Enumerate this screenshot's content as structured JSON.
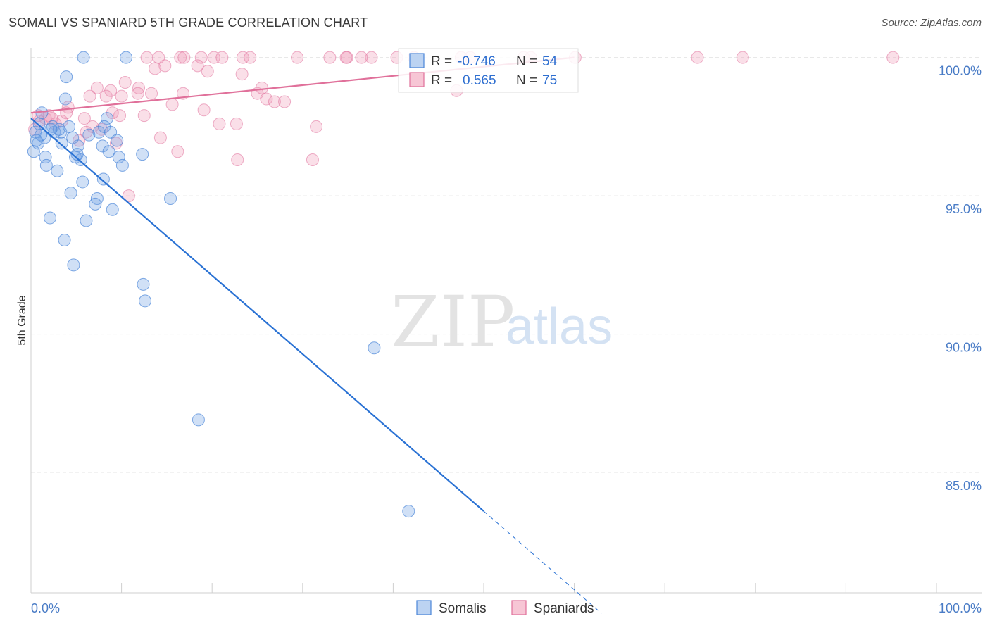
{
  "title": "SOMALI VS SPANIARD 5TH GRADE CORRELATION CHART",
  "source": "Source: ZipAtlas.com",
  "watermark": {
    "zip": "ZIP",
    "atlas": "atlas"
  },
  "colors": {
    "somali": "#4a86d8",
    "somali_fill": "rgba(120,165,230,0.35)",
    "spaniard": "#e0709a",
    "spaniard_fill": "rgba(240,150,180,0.3)",
    "tick_text": "#4a7cc6",
    "grid": "#e5e5e5"
  },
  "legend": {
    "rows": [
      {
        "r_label": "R = ",
        "r_value": "-0.746",
        "n_label": "N = ",
        "n_value": "54"
      },
      {
        "r_label": "R = ",
        "r_value": "0.565",
        "n_label": "N = ",
        "n_value": "75"
      }
    ]
  },
  "chart_data": {
    "type": "scatter",
    "title": "SOMALI VS SPANIARD 5TH GRADE CORRELATION CHART",
    "xlabel": "",
    "ylabel": "5th Grade",
    "xlim": [
      0,
      100
    ],
    "ylim": [
      80.65,
      100.55
    ],
    "x_tick_labels": [
      "0.0%",
      "100.0%"
    ],
    "y_ticks": [
      85,
      90,
      95,
      100
    ],
    "y_tick_labels": [
      "85.0%",
      "90.0%",
      "95.0%",
      "100.0%"
    ],
    "grid": true,
    "legend_position": "top-center",
    "series": [
      {
        "name": "Somalis",
        "r": -0.746,
        "n": 54,
        "trend": {
          "x0": 0,
          "y0": 97.8,
          "x1": 50,
          "y1": 83.6,
          "dashed_to_x": 63
        },
        "points": [
          [
            5.8,
            100.0
          ],
          [
            10.5,
            100.0
          ],
          [
            3.9,
            99.3
          ],
          [
            3.8,
            98.5
          ],
          [
            1.2,
            98.0
          ],
          [
            8.4,
            97.8
          ],
          [
            0.5,
            97.3
          ],
          [
            1.5,
            97.1
          ],
          [
            2.4,
            97.5
          ],
          [
            3.3,
            97.3
          ],
          [
            4.2,
            97.5
          ],
          [
            6.4,
            97.2
          ],
          [
            7.5,
            97.3
          ],
          [
            8.1,
            97.5
          ],
          [
            8.8,
            97.3
          ],
          [
            0.3,
            96.6
          ],
          [
            0.8,
            96.9
          ],
          [
            1.6,
            96.4
          ],
          [
            3.4,
            96.9
          ],
          [
            4.9,
            96.4
          ],
          [
            5.2,
            96.8
          ],
          [
            5.5,
            96.3
          ],
          [
            7.9,
            96.8
          ],
          [
            9.5,
            97.0
          ],
          [
            9.7,
            96.4
          ],
          [
            10.1,
            96.1
          ],
          [
            12.3,
            96.5
          ],
          [
            1.7,
            96.1
          ],
          [
            2.9,
            95.9
          ],
          [
            5.7,
            95.5
          ],
          [
            8.0,
            95.6
          ],
          [
            4.4,
            95.1
          ],
          [
            7.3,
            94.9
          ],
          [
            7.1,
            94.7
          ],
          [
            9.0,
            94.5
          ],
          [
            15.4,
            94.9
          ],
          [
            2.1,
            94.2
          ],
          [
            6.1,
            94.1
          ],
          [
            3.7,
            93.4
          ],
          [
            4.7,
            92.5
          ],
          [
            12.4,
            91.8
          ],
          [
            12.6,
            91.2
          ],
          [
            18.5,
            86.9
          ],
          [
            37.9,
            89.5
          ],
          [
            41.7,
            83.6
          ],
          [
            0.9,
            97.6
          ],
          [
            2.6,
            97.3
          ],
          [
            3.1,
            97.4
          ],
          [
            5.1,
            96.5
          ],
          [
            1.1,
            97.2
          ],
          [
            2.2,
            97.4
          ],
          [
            4.6,
            97.1
          ],
          [
            0.6,
            97.0
          ],
          [
            8.6,
            96.6
          ]
        ]
      },
      {
        "name": "Spaniards",
        "r": 0.565,
        "n": 75,
        "trend": {
          "x0": 0,
          "y0": 98.0,
          "x1": 60,
          "y1": 100.0
        },
        "points": [
          [
            12.8,
            100.0
          ],
          [
            14.1,
            100.0
          ],
          [
            16.5,
            100.0
          ],
          [
            16.9,
            100.0
          ],
          [
            18.8,
            100.0
          ],
          [
            20.2,
            100.0
          ],
          [
            21.1,
            100.0
          ],
          [
            23.4,
            100.0
          ],
          [
            24.2,
            100.0
          ],
          [
            29.4,
            100.0
          ],
          [
            33.0,
            100.0
          ],
          [
            37.6,
            100.0
          ],
          [
            40.4,
            100.0
          ],
          [
            42.3,
            100.0
          ],
          [
            47.5,
            100.0
          ],
          [
            54.4,
            100.0
          ],
          [
            55.2,
            100.0
          ],
          [
            60.1,
            100.0
          ],
          [
            73.6,
            100.0
          ],
          [
            78.6,
            100.0
          ],
          [
            95.2,
            100.0
          ],
          [
            13.7,
            99.6
          ],
          [
            14.8,
            99.7
          ],
          [
            18.4,
            99.7
          ],
          [
            19.5,
            99.5
          ],
          [
            23.3,
            99.4
          ],
          [
            10.4,
            99.1
          ],
          [
            7.3,
            98.9
          ],
          [
            8.8,
            98.8
          ],
          [
            11.9,
            98.9
          ],
          [
            13.3,
            98.7
          ],
          [
            16.8,
            98.7
          ],
          [
            25.0,
            98.7
          ],
          [
            6.5,
            98.6
          ],
          [
            8.3,
            98.6
          ],
          [
            10.0,
            98.6
          ],
          [
            11.8,
            98.7
          ],
          [
            26.0,
            98.5
          ],
          [
            26.9,
            98.4
          ],
          [
            15.6,
            98.3
          ],
          [
            19.1,
            98.1
          ],
          [
            4.1,
            98.2
          ],
          [
            2.0,
            97.9
          ],
          [
            3.4,
            97.7
          ],
          [
            5.9,
            97.8
          ],
          [
            9.0,
            98.0
          ],
          [
            9.8,
            97.9
          ],
          [
            12.5,
            97.9
          ],
          [
            14.3,
            97.1
          ],
          [
            16.2,
            96.6
          ],
          [
            20.8,
            97.6
          ],
          [
            22.7,
            97.6
          ],
          [
            31.5,
            97.5
          ],
          [
            22.8,
            96.3
          ],
          [
            31.1,
            96.3
          ],
          [
            6.1,
            97.3
          ],
          [
            7.8,
            97.4
          ],
          [
            5.3,
            97.0
          ],
          [
            9.4,
            96.9
          ],
          [
            0.8,
            97.9
          ],
          [
            1.6,
            97.8
          ],
          [
            2.7,
            97.6
          ],
          [
            0.4,
            97.4
          ],
          [
            10.8,
            95.0
          ],
          [
            47.0,
            98.8
          ],
          [
            34.9,
            100.0
          ],
          [
            34.8,
            100.0
          ],
          [
            36.5,
            100.0
          ],
          [
            48.5,
            100.0
          ],
          [
            0.9,
            97.7
          ],
          [
            2.3,
            97.8
          ],
          [
            3.9,
            98.0
          ],
          [
            6.8,
            97.5
          ],
          [
            25.5,
            98.9
          ],
          [
            28.0,
            98.4
          ]
        ]
      }
    ]
  }
}
